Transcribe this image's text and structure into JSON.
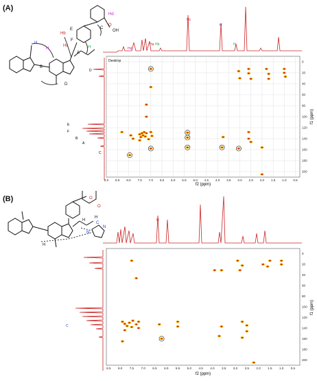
{
  "figure": {
    "panels": [
      {
        "label": "(A)",
        "spectrum_title": "Desktop",
        "x_axis_label": "f2 (ppm)",
        "y_axis_label": "f1 (ppm)",
        "x_ticks": [
          "9.0",
          "8.5",
          "8.0",
          "7.5",
          "7.0",
          "6.5",
          "6.0",
          "5.5",
          "5.0",
          "4.5",
          "4.0",
          "3.5",
          "3.0",
          "2.5",
          "2.0",
          "1.5",
          "1.0",
          "0.5"
        ],
        "y_ticks": [
          "0",
          "20",
          "40",
          "60",
          "80",
          "100",
          "120",
          "140",
          "160",
          "180",
          "200"
        ],
        "peak_labels": [
          "Hc",
          "Ha",
          "Hb",
          "Hd",
          "H",
          "H"
        ],
        "proj_labels": [
          "D",
          "E",
          "F",
          "B",
          "A",
          "C"
        ],
        "structure_labels": [
          "H",
          "H",
          "B",
          "A",
          "F",
          "E",
          "D",
          "C",
          "O",
          "OH",
          "Hd",
          "Hb",
          "Hc",
          "H"
        ]
      },
      {
        "label": "(B)",
        "x_axis_label": "f2 (ppm)",
        "y_axis_label": "f1 (ppm)",
        "x_ticks": [
          "8.5",
          "8.0",
          "7.5",
          "7.0",
          "6.5",
          "6.0",
          "5.5",
          "5.0",
          "4.5",
          "4.0",
          "3.5",
          "3.0",
          "2.5",
          "2.0",
          "1.5",
          "1.0",
          "0.5"
        ],
        "y_ticks": [
          "0",
          "20",
          "40",
          "60",
          "80",
          "100",
          "120",
          "140",
          "160",
          "180",
          "200"
        ],
        "peak_labels": [
          "H"
        ],
        "proj_labels": [
          "C"
        ],
        "structure_labels": [
          "O",
          "O",
          "N",
          "N",
          "H",
          "H",
          "H",
          "C"
        ]
      }
    ]
  },
  "chart_data": [
    {
      "type": "scatter",
      "title": "(A)",
      "xlabel": "f2 (ppm)",
      "ylabel": "f1 (ppm)",
      "xlim": [
        9.0,
        0.3
      ],
      "ylim": [
        -10,
        210
      ],
      "grid": true,
      "series": [
        {
          "values": [
            {
              "x": 7.3,
              "y": 128
            },
            {
              "x": 7.4,
              "y": 130
            },
            {
              "x": 7.5,
              "y": 132
            },
            {
              "x": 7.35,
              "y": 134
            },
            {
              "x": 7.2,
              "y": 130
            },
            {
              "x": 7.25,
              "y": 136
            },
            {
              "x": 7.45,
              "y": 137
            },
            {
              "x": 7.1,
              "y": 141
            },
            {
              "x": 7.5,
              "y": 143
            },
            {
              "x": 8.3,
              "y": 128
            },
            {
              "x": 7.9,
              "y": 134
            },
            {
              "x": 7.0,
              "y": 128
            },
            {
              "x": 6.95,
              "y": 135
            },
            {
              "x": 7.0,
              "y": 158
            },
            {
              "x": 7.8,
              "y": 140
            },
            {
              "x": 5.35,
              "y": 129
            },
            {
              "x": 5.35,
              "y": 138
            },
            {
              "x": 5.35,
              "y": 156
            },
            {
              "x": 3.8,
              "y": 156
            },
            {
              "x": 3.05,
              "y": 158
            },
            {
              "x": 2.6,
              "y": 128
            },
            {
              "x": 2.5,
              "y": 146
            },
            {
              "x": 2.6,
              "y": 140
            },
            {
              "x": 2.0,
              "y": 156
            },
            {
              "x": 3.75,
              "y": 137
            },
            {
              "x": 7.95,
              "y": 170
            },
            {
              "x": 7.0,
              "y": 46
            },
            {
              "x": 7.0,
              "y": 13
            },
            {
              "x": 2.6,
              "y": 13
            },
            {
              "x": 2.6,
              "y": 21
            },
            {
              "x": 1.8,
              "y": 13
            },
            {
              "x": 1.7,
              "y": 22
            },
            {
              "x": 1.0,
              "y": 13
            },
            {
              "x": 1.0,
              "y": 20
            },
            {
              "x": 0.95,
              "y": 27
            },
            {
              "x": 1.7,
              "y": 31
            },
            {
              "x": 2.5,
              "y": 31
            },
            {
              "x": 3.0,
              "y": 30
            },
            {
              "x": 3.05,
              "y": 17
            },
            {
              "x": 2.0,
              "y": 205
            },
            {
              "x": 7.2,
              "y": 78
            },
            {
              "x": 7.2,
              "y": 100
            }
          ]
        }
      ]
    },
    {
      "type": "scatter",
      "title": "(B)",
      "xlabel": "f2 (ppm)",
      "ylabel": "f1 (ppm)",
      "xlim": [
        8.6,
        0.2
      ],
      "ylim": [
        -10,
        210
      ],
      "grid": false,
      "series": [
        {
          "values": [
            {
              "x": 7.9,
              "y": 128
            },
            {
              "x": 7.8,
              "y": 132
            },
            {
              "x": 7.7,
              "y": 136
            },
            {
              "x": 7.6,
              "y": 130
            },
            {
              "x": 7.5,
              "y": 138
            },
            {
              "x": 7.45,
              "y": 126
            },
            {
              "x": 7.3,
              "y": 133
            },
            {
              "x": 7.2,
              "y": 140
            },
            {
              "x": 7.8,
              "y": 144
            },
            {
              "x": 7.2,
              "y": 128
            },
            {
              "x": 6.3,
              "y": 133
            },
            {
              "x": 5.5,
              "y": 137
            },
            {
              "x": 5.5,
              "y": 128
            },
            {
              "x": 3.6,
              "y": 137
            },
            {
              "x": 2.5,
              "y": 146
            },
            {
              "x": 2.7,
              "y": 128
            },
            {
              "x": 2.5,
              "y": 135
            },
            {
              "x": 3.7,
              "y": 155
            },
            {
              "x": 2.7,
              "y": 158
            },
            {
              "x": 6.2,
              "y": 160
            },
            {
              "x": 7.9,
              "y": 165
            },
            {
              "x": 7.3,
              "y": 46
            },
            {
              "x": 2.9,
              "y": 13
            },
            {
              "x": 2.7,
              "y": 22
            },
            {
              "x": 1.8,
              "y": 20
            },
            {
              "x": 1.5,
              "y": 13
            },
            {
              "x": 1.0,
              "y": 13
            },
            {
              "x": 1.0,
              "y": 20
            },
            {
              "x": 1.6,
              "y": 24
            },
            {
              "x": 2.8,
              "y": 31
            },
            {
              "x": 3.6,
              "y": 31
            },
            {
              "x": 3.9,
              "y": 31
            },
            {
              "x": 7.5,
              "y": 13
            },
            {
              "x": 2.2,
              "y": 205
            }
          ]
        }
      ]
    }
  ]
}
